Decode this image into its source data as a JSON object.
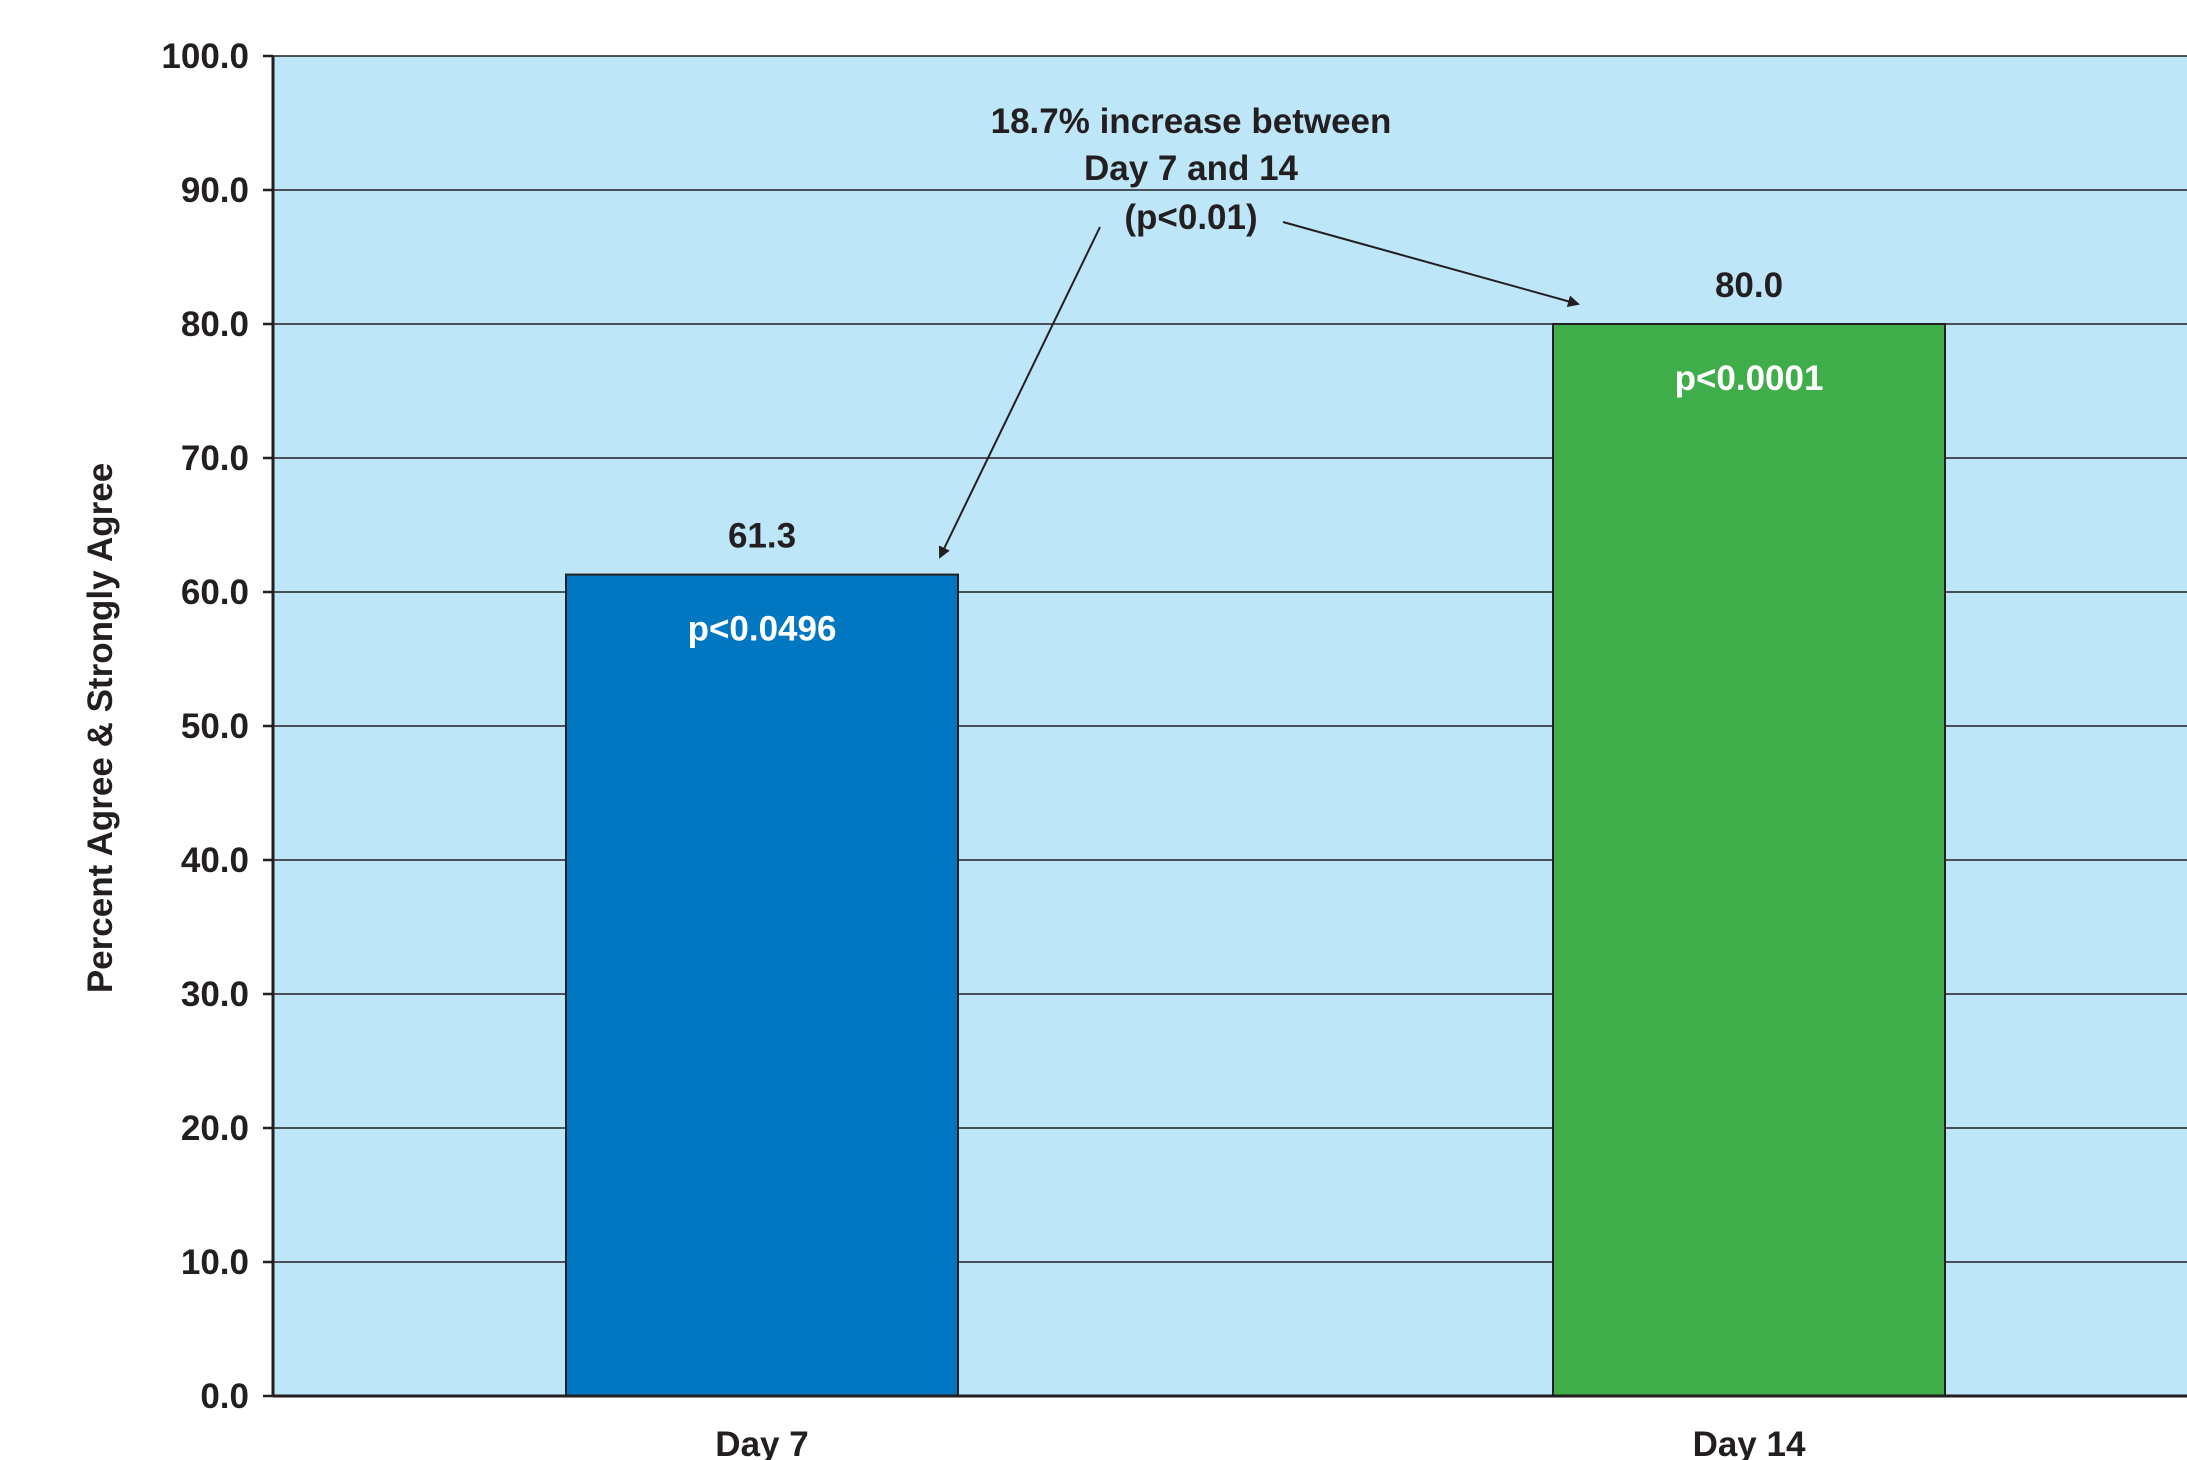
{
  "chart_data": {
    "type": "bar",
    "categories": [
      "Day 7",
      "Day 14"
    ],
    "values": [
      61.3,
      80.0
    ],
    "value_labels": [
      "61.3",
      "80.0"
    ],
    "bar_annotations": [
      "p<0.0496",
      "p<0.0001"
    ],
    "bar_colors": [
      "#0077c0",
      "#3fad49"
    ],
    "title": "",
    "xlabel": "",
    "ylabel": "Percent Agree & Strongly Agree",
    "ylim": [
      0,
      100
    ],
    "yticks": [
      "0.0",
      "10.0",
      "20.0",
      "30.0",
      "40.0",
      "50.0",
      "60.0",
      "70.0",
      "80.0",
      "90.0",
      "100.0"
    ],
    "grid": true,
    "legend": "none",
    "annotation": {
      "lines": [
        "18.7% increase between",
        "Day 7 and 14",
        "(p<0.01)"
      ],
      "points_to": [
        "Day 7",
        "Day 14"
      ]
    },
    "colors": {
      "plot_background": "#bde6f8",
      "gridline": "#231f20",
      "axis": "#231f20"
    }
  }
}
